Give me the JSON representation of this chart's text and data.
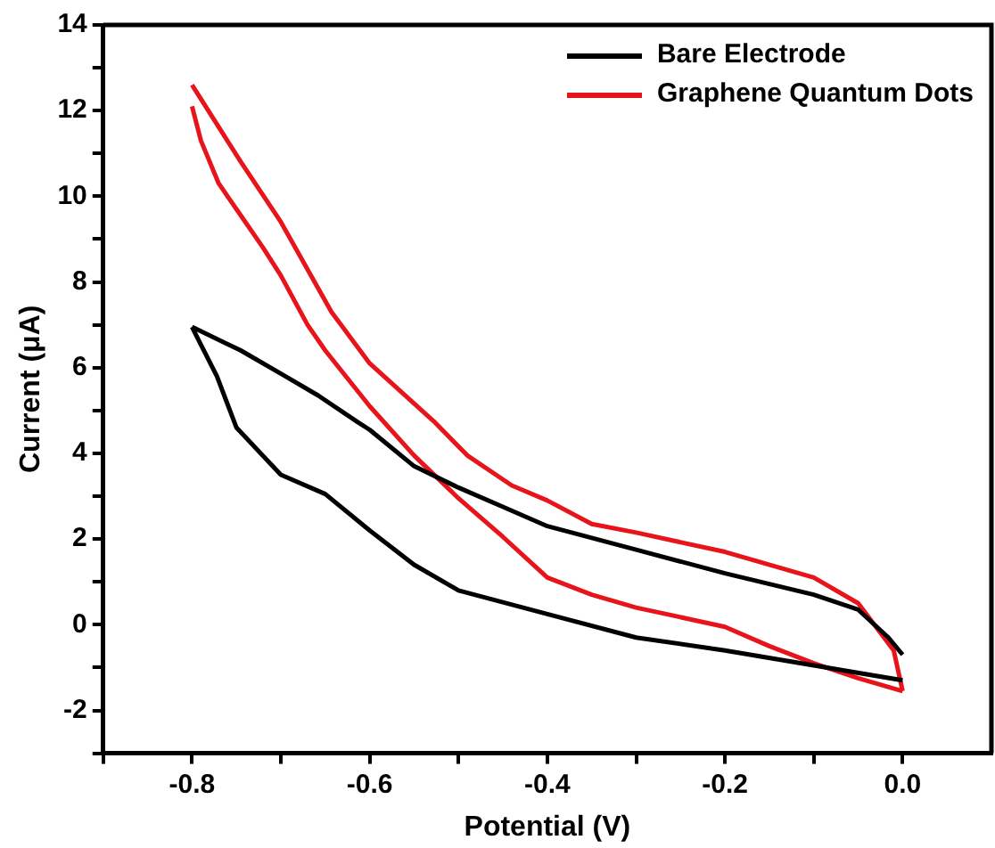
{
  "chart_data": {
    "type": "line",
    "xlabel": "Potential (V)",
    "ylabel": "Current (μA)",
    "legend": "top right",
    "grid": false,
    "marker": "none",
    "line_style": "solid",
    "xlim": [
      -0.9,
      0.1
    ],
    "ylim": [
      -3,
      14
    ],
    "xticks": [
      {
        "value": -0.9,
        "label": null
      },
      -0.8,
      {
        "value": -0.7,
        "label": null
      },
      -0.6,
      {
        "value": -0.5,
        "label": null
      },
      -0.4,
      {
        "value": -0.3,
        "label": null
      },
      -0.2,
      {
        "value": -0.1,
        "label": null
      },
      {
        "value": 0,
        "label": "0.0"
      }
    ],
    "yticks": [
      {
        "value": -3,
        "label": null
      },
      -2,
      {
        "value": -1,
        "label": null
      },
      0,
      {
        "value": 1,
        "label": null
      },
      2,
      {
        "value": 3,
        "label": null
      },
      4,
      {
        "value": 5,
        "label": null
      },
      6,
      {
        "value": 7,
        "label": null
      },
      8,
      {
        "value": 9,
        "label": null
      },
      10,
      {
        "value": 11,
        "label": null
      },
      12,
      {
        "value": 13,
        "label": null
      },
      14
    ],
    "series": [
      {
        "name": "Bare Electrode",
        "color": "#000000",
        "x": [
          -0.8,
          -0.794,
          -0.772,
          -0.75,
          -0.7,
          -0.65,
          -0.6,
          -0.55,
          -0.5,
          -0.4,
          -0.3,
          -0.2,
          -0.1,
          0
        ],
        "values": [
          6.95,
          6.7,
          5.8,
          4.6,
          3.5,
          3.05,
          2.2,
          1.4,
          0.8,
          0.25,
          -0.3,
          -0.6,
          -0.95,
          -1.3
        ]
      },
      {
        "color": "#000000",
        "x": [
          -0.8,
          -0.745,
          -0.695,
          -0.658,
          -0.615,
          -0.6,
          -0.55,
          -0.5,
          -0.45,
          -0.4,
          -0.3,
          -0.2,
          -0.1,
          -0.05,
          -0.016,
          0
        ],
        "values": [
          6.95,
          6.4,
          5.8,
          5.35,
          4.75,
          4.55,
          3.7,
          3.2,
          2.75,
          2.3,
          1.75,
          1.2,
          0.7,
          0.35,
          -0.3,
          -0.7
        ]
      },
      {
        "name": "Graphene Quantum Dots",
        "color": "#e8141b",
        "x": [
          -0.8,
          -0.79,
          -0.77,
          -0.74,
          -0.72,
          -0.7,
          -0.67,
          -0.65,
          -0.6,
          -0.55,
          -0.5,
          -0.45,
          -0.4,
          -0.35,
          -0.3,
          -0.2,
          -0.15,
          -0.1,
          -0.05,
          0
        ],
        "values": [
          12.1,
          11.3,
          10.3,
          9.4,
          8.8,
          8.15,
          7.0,
          6.4,
          5.1,
          3.95,
          2.95,
          2.05,
          1.1,
          0.7,
          0.4,
          -0.05,
          -0.5,
          -0.9,
          -1.25,
          -1.55
        ]
      },
      {
        "color": "#e8141b",
        "x": [
          -0.8,
          -0.745,
          -0.7,
          -0.643,
          -0.6,
          -0.528,
          -0.49,
          -0.44,
          -0.4,
          -0.35,
          -0.3,
          -0.2,
          -0.1,
          -0.05,
          -0.01,
          0
        ],
        "values": [
          12.6,
          10.8,
          9.4,
          7.3,
          6.1,
          4.75,
          3.95,
          3.25,
          2.9,
          2.35,
          2.15,
          1.7,
          1.1,
          0.5,
          -0.6,
          -1.55
        ]
      }
    ]
  }
}
